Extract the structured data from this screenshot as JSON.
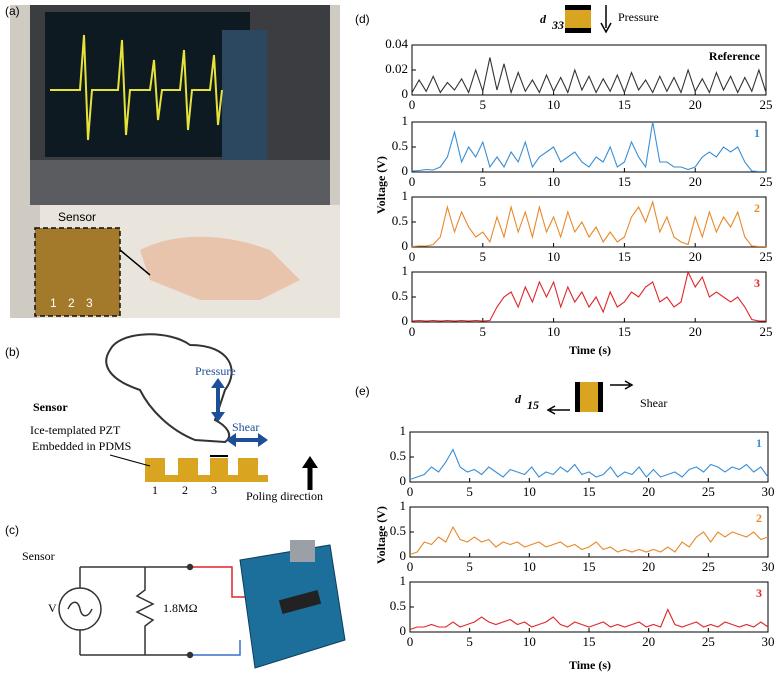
{
  "panels": {
    "a": {
      "label": "(a)",
      "sensor": "Sensor",
      "columns": [
        "1",
        "2",
        "3"
      ]
    },
    "b": {
      "label": "(b)",
      "pressure": "Pressure",
      "sensor": "Sensor",
      "shear": "Shear",
      "material": [
        "Ice-templated PZT",
        "Embedded in PDMS"
      ],
      "columns": [
        "1",
        "2",
        "3"
      ],
      "poling": "Poling direction"
    },
    "c": {
      "label": "(c)",
      "sensor": "Sensor",
      "source": "V",
      "resistor": "1.8MΩ"
    }
  },
  "chart_data": [
    {
      "type": "line",
      "panel_label": "(d)",
      "title": "d",
      "title_sub": "33",
      "title_text": "Pressure",
      "xlabel": "Time (s)",
      "ylabel": "Voltage (V)",
      "xlim": [
        0,
        25
      ],
      "xticks": [
        0,
        5,
        10,
        15,
        20,
        25
      ],
      "x": [
        0,
        0.5,
        1,
        1.5,
        2,
        2.5,
        3,
        3.5,
        4,
        4.5,
        5,
        5.5,
        6,
        6.5,
        7,
        7.5,
        8,
        8.5,
        9,
        9.5,
        10,
        10.5,
        11,
        11.5,
        12,
        12.5,
        13,
        13.5,
        14,
        14.5,
        15,
        15.5,
        16,
        16.5,
        17,
        17.5,
        18,
        18.5,
        19,
        19.5,
        20,
        20.5,
        21,
        21.5,
        22,
        22.5,
        23,
        23.5,
        24,
        24.5,
        25
      ],
      "series": [
        {
          "name": "Reference",
          "color": "#333333",
          "ylim": [
            0,
            0.04
          ],
          "yticks": [
            0,
            0.02,
            0.04
          ],
          "values": [
            0.002,
            0.012,
            0.003,
            0.015,
            0.002,
            0.01,
            0.004,
            0.013,
            0.002,
            0.02,
            0.003,
            0.03,
            0.004,
            0.025,
            0.002,
            0.018,
            0.003,
            0.012,
            0.002,
            0.016,
            0.003,
            0.014,
            0.002,
            0.02,
            0.004,
            0.015,
            0.002,
            0.013,
            0.003,
            0.016,
            0.002,
            0.018,
            0.004,
            0.012,
            0.002,
            0.015,
            0.003,
            0.014,
            0.002,
            0.02,
            0.003,
            0.013,
            0.002,
            0.018,
            0.004,
            0.015,
            0.002,
            0.014,
            0.003,
            0.02,
            0.002
          ]
        },
        {
          "name": "1",
          "color": "#3a8fd6",
          "ylim": [
            0,
            1
          ],
          "yticks": [
            0,
            0.5,
            1
          ],
          "values": [
            0.02,
            0.03,
            0.05,
            0.04,
            0.1,
            0.3,
            0.8,
            0.2,
            0.5,
            0.3,
            0.6,
            0.1,
            0.3,
            0.1,
            0.4,
            0.2,
            0.6,
            0.1,
            0.3,
            0.4,
            0.5,
            0.2,
            0.3,
            0.4,
            0.2,
            0.1,
            0.3,
            0.2,
            0.5,
            0.1,
            0.2,
            0.6,
            0.3,
            0.1,
            1,
            0.2,
            0.2,
            0.1,
            0.1,
            0.05,
            0.1,
            0.3,
            0.4,
            0.3,
            0.5,
            0.4,
            0.5,
            0.2,
            0.02,
            0.01,
            0.01
          ]
        },
        {
          "name": "2",
          "color": "#e8892b",
          "ylim": [
            0,
            1
          ],
          "yticks": [
            0,
            0.5,
            1
          ],
          "values": [
            0.01,
            0.02,
            0.02,
            0.05,
            0.2,
            0.8,
            0.3,
            0.7,
            0.4,
            0.2,
            0.3,
            0.1,
            0.6,
            0.2,
            0.8,
            0.3,
            0.7,
            0.2,
            0.8,
            0.3,
            0.6,
            0.2,
            0.7,
            0.3,
            0.5,
            0.2,
            0.4,
            0.1,
            0.3,
            0.1,
            0.2,
            0.6,
            0.8,
            0.5,
            0.9,
            0.3,
            0.6,
            0.2,
            0.1,
            0.05,
            0.6,
            0.2,
            0.7,
            0.3,
            0.6,
            0.4,
            0.7,
            0.2,
            0.02,
            0.01,
            0.01
          ]
        },
        {
          "name": "3",
          "color": "#e0262b",
          "ylim": [
            0,
            1
          ],
          "yticks": [
            0,
            0.5,
            1
          ],
          "values": [
            0.02,
            0.03,
            0.02,
            0.03,
            0.02,
            0.03,
            0.02,
            0.03,
            0.02,
            0.03,
            0.02,
            0.03,
            0.3,
            0.5,
            0.6,
            0.3,
            0.7,
            0.4,
            0.8,
            0.5,
            0.8,
            0.3,
            0.7,
            0.4,
            0.6,
            0.3,
            0.5,
            0.2,
            0.6,
            0.3,
            0.4,
            0.6,
            0.5,
            0.7,
            0.8,
            0.4,
            0.5,
            0.3,
            0.4,
            1,
            0.7,
            0.9,
            0.5,
            0.6,
            0.5,
            0.4,
            0.5,
            0.3,
            0.05,
            0.02,
            0.02
          ]
        }
      ]
    },
    {
      "type": "line",
      "panel_label": "(e)",
      "title": "d",
      "title_sub": "15",
      "title_text": "Shear",
      "xlabel": "Time (s)",
      "ylabel": "Voltage (V)",
      "xlim": [
        0,
        30
      ],
      "xticks": [
        0,
        5,
        10,
        15,
        20,
        25,
        30
      ],
      "x": [
        0,
        0.6,
        1.2,
        1.8,
        2.4,
        3,
        3.6,
        4.2,
        4.8,
        5.4,
        6,
        6.6,
        7.2,
        7.8,
        8.4,
        9,
        9.6,
        10.2,
        10.8,
        11.4,
        12,
        12.6,
        13.2,
        13.8,
        14.4,
        15,
        15.6,
        16.2,
        16.8,
        17.4,
        18,
        18.6,
        19.2,
        19.8,
        20.4,
        21,
        21.6,
        22.2,
        22.8,
        23.4,
        24,
        24.6,
        25.2,
        25.8,
        26.4,
        27,
        27.6,
        28.2,
        28.8,
        29.4,
        30
      ],
      "series": [
        {
          "name": "1",
          "color": "#3a8fd6",
          "ylim": [
            0,
            1
          ],
          "yticks": [
            0,
            0.5,
            1
          ],
          "values": [
            0.05,
            0.1,
            0.15,
            0.3,
            0.2,
            0.4,
            0.65,
            0.3,
            0.2,
            0.25,
            0.15,
            0.3,
            0.2,
            0.1,
            0.25,
            0.2,
            0.15,
            0.3,
            0.1,
            0.2,
            0.15,
            0.3,
            0.2,
            0.35,
            0.15,
            0.2,
            0.1,
            0.15,
            0.3,
            0.1,
            0.2,
            0.15,
            0.3,
            0.1,
            0.25,
            0.1,
            0.15,
            0.2,
            0.1,
            0.25,
            0.3,
            0.2,
            0.35,
            0.3,
            0.2,
            0.3,
            0.25,
            0.35,
            0.2,
            0.3,
            0.1
          ]
        },
        {
          "name": "2",
          "color": "#e8892b",
          "ylim": [
            0,
            1
          ],
          "yticks": [
            0,
            0.5,
            1
          ],
          "values": [
            0.05,
            0.1,
            0.3,
            0.25,
            0.4,
            0.3,
            0.6,
            0.35,
            0.3,
            0.4,
            0.3,
            0.35,
            0.2,
            0.3,
            0.25,
            0.3,
            0.2,
            0.25,
            0.3,
            0.2,
            0.25,
            0.3,
            0.2,
            0.25,
            0.15,
            0.2,
            0.3,
            0.15,
            0.2,
            0.1,
            0.15,
            0.1,
            0.15,
            0.1,
            0.15,
            0.1,
            0.2,
            0.1,
            0.3,
            0.2,
            0.4,
            0.5,
            0.3,
            0.5,
            0.4,
            0.5,
            0.45,
            0.4,
            0.5,
            0.35,
            0.4
          ]
        },
        {
          "name": "3",
          "color": "#e0262b",
          "ylim": [
            0,
            1
          ],
          "yticks": [
            0,
            0.5,
            1
          ],
          "values": [
            0.05,
            0.1,
            0.1,
            0.15,
            0.1,
            0.1,
            0.2,
            0.1,
            0.15,
            0.2,
            0.3,
            0.2,
            0.15,
            0.2,
            0.25,
            0.15,
            0.2,
            0.1,
            0.15,
            0.2,
            0.3,
            0.15,
            0.1,
            0.2,
            0.15,
            0.1,
            0.15,
            0.2,
            0.1,
            0.15,
            0.1,
            0.15,
            0.2,
            0.1,
            0.15,
            0.1,
            0.45,
            0.15,
            0.1,
            0.15,
            0.2,
            0.1,
            0.15,
            0.1,
            0.2,
            0.15,
            0.1,
            0.15,
            0.1,
            0.2,
            0.1
          ]
        }
      ]
    }
  ]
}
